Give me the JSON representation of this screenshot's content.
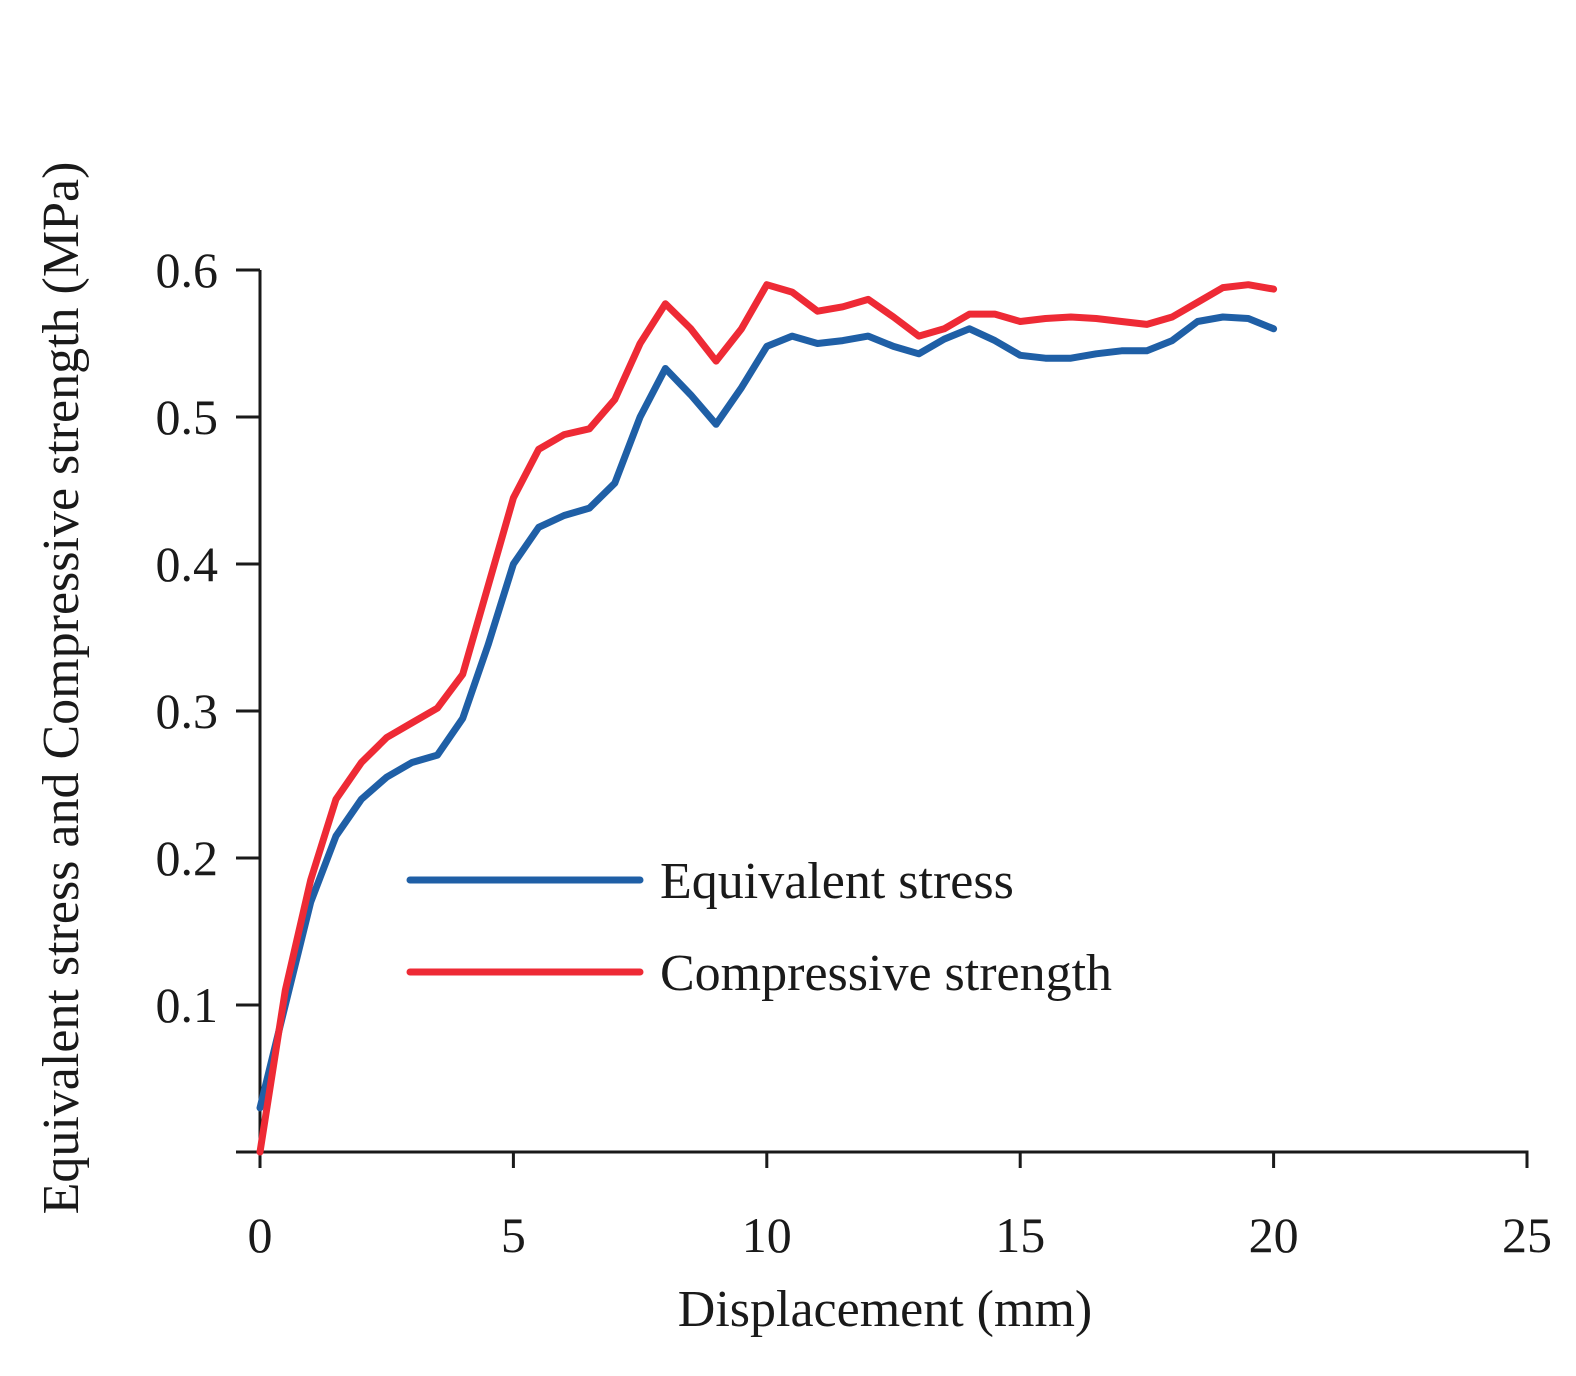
{
  "chart_data": {
    "type": "line",
    "title": "",
    "xlabel": "Displacement (mm)",
    "ylabel": "Equivalent stress and Compressive strength (MPa)",
    "xlim": [
      0,
      25
    ],
    "ylim": [
      0,
      0.6
    ],
    "xticks": [
      0,
      5,
      10,
      15,
      20,
      25
    ],
    "xtick_labels": [
      "0",
      "5",
      "10",
      "15",
      "20",
      "25"
    ],
    "yticks": [
      0.1,
      0.2,
      0.3,
      0.4,
      0.5,
      0.6
    ],
    "ytick_labels": [
      "0.1",
      "0.2",
      "0.3",
      "0.4",
      "0.5",
      "0.6"
    ],
    "grid": false,
    "legend_position": "center",
    "series": [
      {
        "name": "Equivalent stress",
        "color": "#1f5fa6",
        "x": [
          0,
          0.5,
          1,
          1.5,
          2,
          2.5,
          3,
          3.5,
          4,
          4.5,
          5,
          5.5,
          6,
          6.5,
          7,
          7.5,
          8,
          8.5,
          9,
          9.5,
          10,
          10.5,
          11,
          11.5,
          12,
          12.5,
          13,
          13.5,
          14,
          14.5,
          15,
          15.5,
          16,
          16.5,
          17,
          17.5,
          18,
          18.5,
          19,
          19.5,
          20
        ],
        "values": [
          0.03,
          0.1,
          0.17,
          0.215,
          0.24,
          0.255,
          0.265,
          0.27,
          0.295,
          0.345,
          0.4,
          0.425,
          0.433,
          0.438,
          0.455,
          0.5,
          0.533,
          0.515,
          0.495,
          0.52,
          0.548,
          0.555,
          0.55,
          0.552,
          0.555,
          0.548,
          0.543,
          0.553,
          0.56,
          0.552,
          0.542,
          0.54,
          0.54,
          0.543,
          0.545,
          0.545,
          0.552,
          0.565,
          0.568,
          0.567,
          0.56
        ]
      },
      {
        "name": "Compressive strength",
        "color": "#ee2a35",
        "x": [
          0,
          0.5,
          1,
          1.5,
          2,
          2.5,
          3,
          3.5,
          4,
          4.5,
          5,
          5.5,
          6,
          6.5,
          7,
          7.5,
          8,
          8.5,
          9,
          9.5,
          10,
          10.5,
          11,
          11.5,
          12,
          12.5,
          13,
          13.5,
          14,
          14.5,
          15,
          15.5,
          16,
          16.5,
          17,
          17.5,
          18,
          18.5,
          19,
          19.5,
          20
        ],
        "values": [
          0,
          0.11,
          0.185,
          0.24,
          0.265,
          0.282,
          0.292,
          0.302,
          0.325,
          0.385,
          0.445,
          0.478,
          0.488,
          0.492,
          0.512,
          0.55,
          0.577,
          0.56,
          0.538,
          0.56,
          0.59,
          0.585,
          0.572,
          0.575,
          0.58,
          0.568,
          0.555,
          0.56,
          0.57,
          0.57,
          0.565,
          0.567,
          0.568,
          0.567,
          0.565,
          0.563,
          0.568,
          0.578,
          0.588,
          0.59,
          0.587
        ]
      }
    ]
  }
}
